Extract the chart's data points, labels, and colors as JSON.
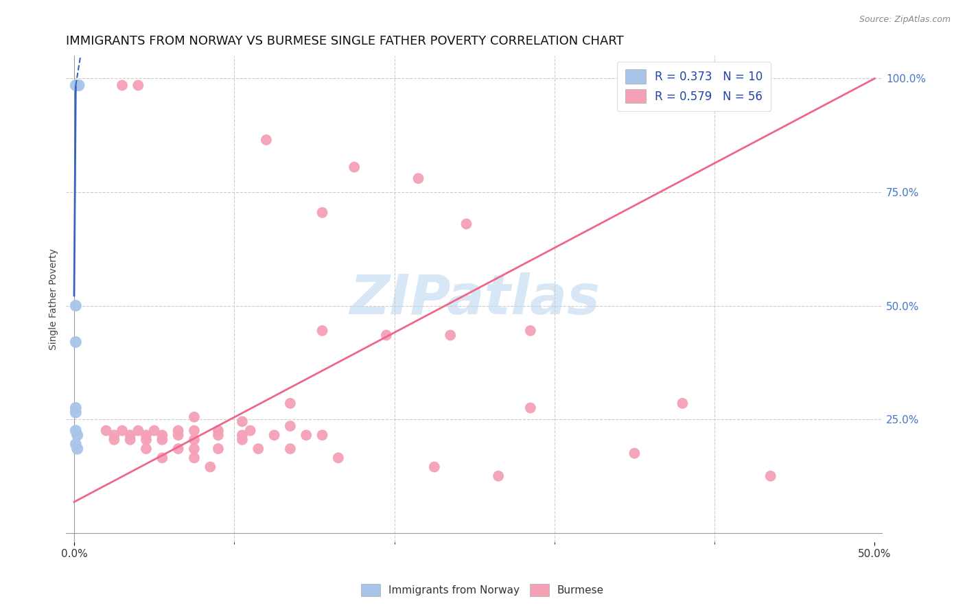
{
  "title": "IMMIGRANTS FROM NORWAY VS BURMESE SINGLE FATHER POVERTY CORRELATION CHART",
  "source": "Source: ZipAtlas.com",
  "ylabel": "Single Father Poverty",
  "x_tick_labels": [
    "0.0%",
    "50.0%"
  ],
  "x_tick_positions": [
    0.0,
    0.5
  ],
  "y_tick_labels_right": [
    "100.0%",
    "75.0%",
    "50.0%",
    "25.0%"
  ],
  "y_tick_positions_right": [
    1.0,
    0.75,
    0.5,
    0.25
  ],
  "xlim": [
    -0.005,
    0.505
  ],
  "ylim": [
    -0.02,
    1.05
  ],
  "legend_entry1": "R = 0.373   N = 10",
  "legend_entry2": "R = 0.579   N = 56",
  "legend_label1": "Immigrants from Norway",
  "legend_label2": "Burmese",
  "norway_color": "#a8c4e8",
  "burmese_color": "#f4a0b5",
  "norway_line_color": "#3366bb",
  "burmese_line_color": "#ee6688",
  "norway_scatter": [
    [
      0.001,
      0.985
    ],
    [
      0.003,
      0.985
    ],
    [
      0.001,
      0.5
    ],
    [
      0.001,
      0.42
    ],
    [
      0.001,
      0.275
    ],
    [
      0.001,
      0.265
    ],
    [
      0.001,
      0.225
    ],
    [
      0.002,
      0.215
    ],
    [
      0.001,
      0.195
    ],
    [
      0.002,
      0.185
    ]
  ],
  "burmese_scatter": [
    [
      0.03,
      0.985
    ],
    [
      0.04,
      0.985
    ],
    [
      0.345,
      0.985
    ],
    [
      0.12,
      0.865
    ],
    [
      0.175,
      0.805
    ],
    [
      0.215,
      0.78
    ],
    [
      0.155,
      0.705
    ],
    [
      0.245,
      0.68
    ],
    [
      0.155,
      0.445
    ],
    [
      0.285,
      0.445
    ],
    [
      0.195,
      0.435
    ],
    [
      0.235,
      0.435
    ],
    [
      0.135,
      0.285
    ],
    [
      0.285,
      0.275
    ],
    [
      0.075,
      0.255
    ],
    [
      0.105,
      0.245
    ],
    [
      0.135,
      0.235
    ],
    [
      0.02,
      0.225
    ],
    [
      0.03,
      0.225
    ],
    [
      0.04,
      0.225
    ],
    [
      0.05,
      0.225
    ],
    [
      0.065,
      0.225
    ],
    [
      0.075,
      0.225
    ],
    [
      0.09,
      0.225
    ],
    [
      0.11,
      0.225
    ],
    [
      0.025,
      0.215
    ],
    [
      0.035,
      0.215
    ],
    [
      0.045,
      0.215
    ],
    [
      0.055,
      0.215
    ],
    [
      0.065,
      0.215
    ],
    [
      0.09,
      0.215
    ],
    [
      0.105,
      0.215
    ],
    [
      0.125,
      0.215
    ],
    [
      0.145,
      0.215
    ],
    [
      0.155,
      0.215
    ],
    [
      0.025,
      0.205
    ],
    [
      0.035,
      0.205
    ],
    [
      0.045,
      0.205
    ],
    [
      0.055,
      0.205
    ],
    [
      0.075,
      0.205
    ],
    [
      0.105,
      0.205
    ],
    [
      0.045,
      0.185
    ],
    [
      0.065,
      0.185
    ],
    [
      0.075,
      0.185
    ],
    [
      0.09,
      0.185
    ],
    [
      0.115,
      0.185
    ],
    [
      0.135,
      0.185
    ],
    [
      0.055,
      0.165
    ],
    [
      0.075,
      0.165
    ],
    [
      0.165,
      0.165
    ],
    [
      0.085,
      0.145
    ],
    [
      0.225,
      0.145
    ],
    [
      0.265,
      0.125
    ],
    [
      0.35,
      0.175
    ],
    [
      0.435,
      0.125
    ],
    [
      0.38,
      0.285
    ]
  ],
  "norway_trendline_solid": [
    [
      0.0,
      0.52
    ],
    [
      0.001,
      0.985
    ]
  ],
  "norway_trendline_dashed": [
    [
      0.001,
      0.985
    ],
    [
      0.004,
      1.05
    ]
  ],
  "burmese_trendline": [
    [
      0.0,
      0.068
    ],
    [
      0.5,
      1.0
    ]
  ],
  "watermark": "ZIPatlas",
  "background_color": "#ffffff",
  "grid_color": "#cccccc",
  "title_fontsize": 13,
  "axis_label_fontsize": 10,
  "tick_fontsize": 11
}
